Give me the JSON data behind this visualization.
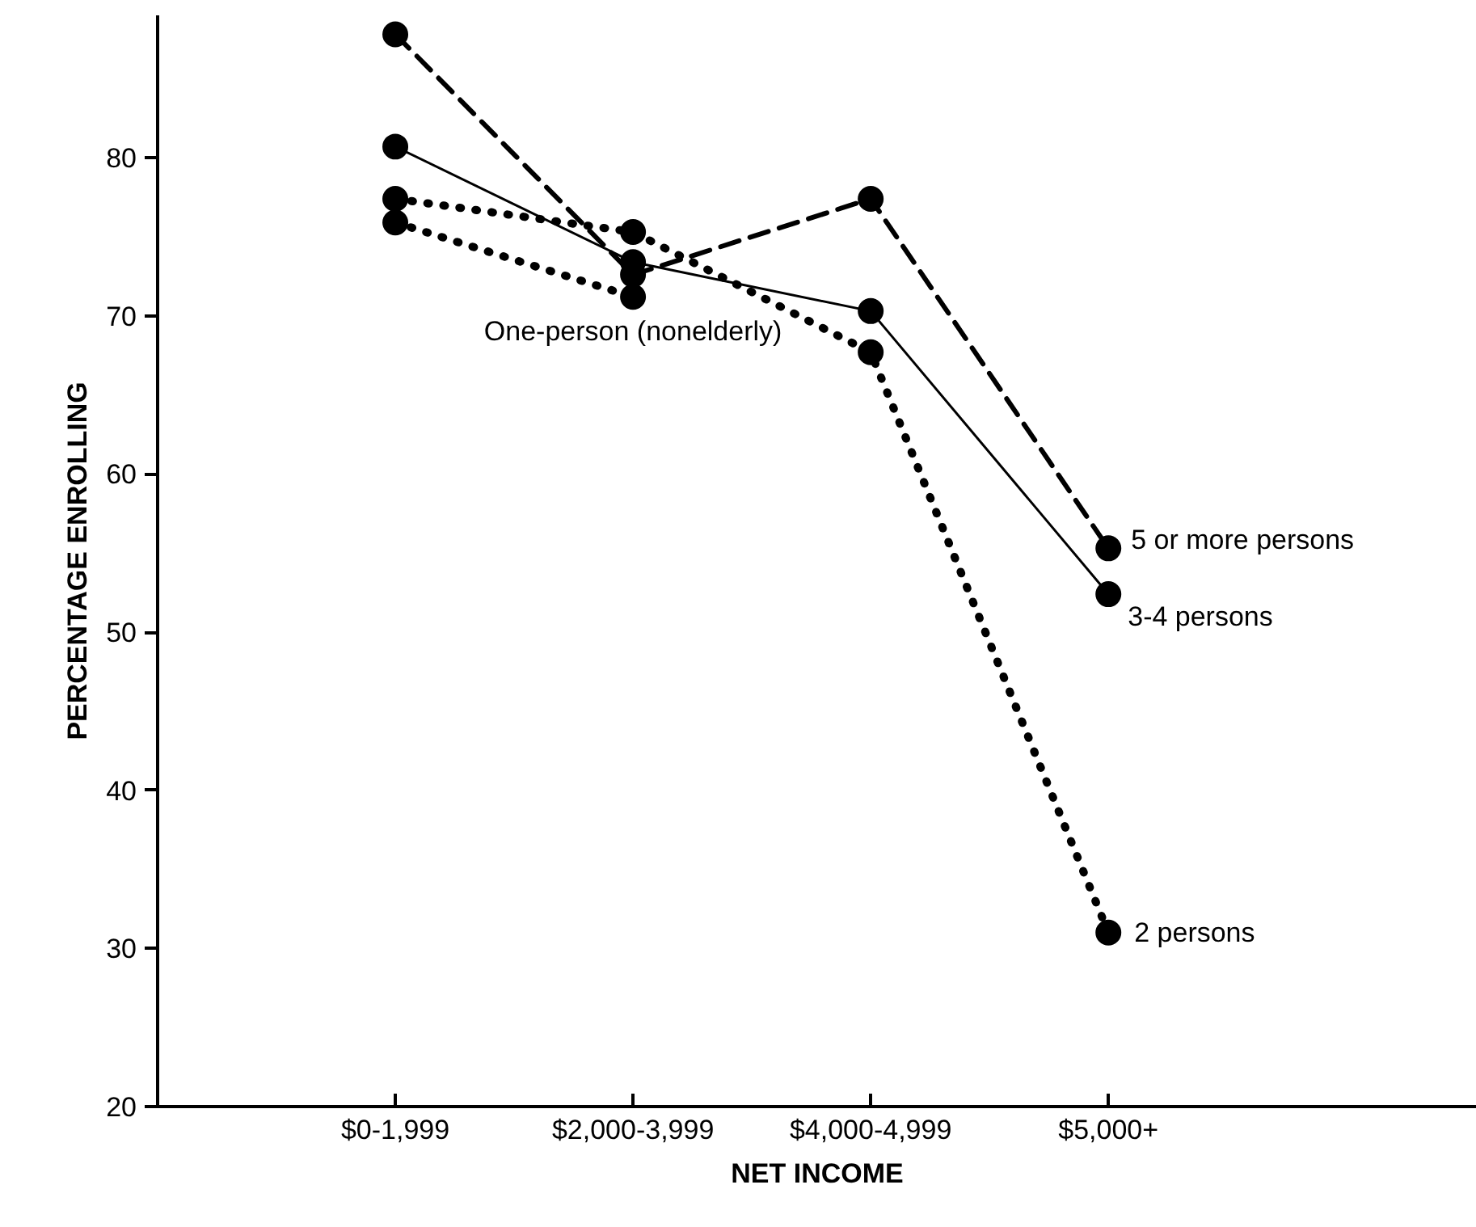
{
  "chart_data": {
    "type": "line",
    "xlabel": "NET INCOME",
    "ylabel": "PERCENTAGE ENROLLING",
    "categories": [
      "$0-1,999",
      "$2,000-3,999",
      "$4,000-4,999",
      "$5,000+"
    ],
    "series": [
      {
        "name": "5 or more persons",
        "color": "#000000",
        "line_style": "dashed",
        "values": [
          87.8,
          72.6,
          77.4,
          55.3
        ]
      },
      {
        "name": "3-4 persons",
        "color": "#000000",
        "line_style": "solid",
        "values": [
          80.7,
          73.4,
          70.3,
          52.4
        ]
      },
      {
        "name": "2 persons",
        "color": "#000000",
        "line_style": "dotted",
        "values": [
          77.4,
          75.3,
          67.7,
          31.0
        ]
      },
      {
        "name": "One-person (nonelderly)",
        "color": "#000000",
        "line_style": "dotted",
        "values": [
          75.9,
          71.2,
          null,
          null
        ]
      }
    ],
    "ylim": [
      20,
      89
    ],
    "yticks": [
      20,
      30,
      40,
      50,
      60,
      70,
      80
    ],
    "grid": false,
    "marker": "circle"
  }
}
